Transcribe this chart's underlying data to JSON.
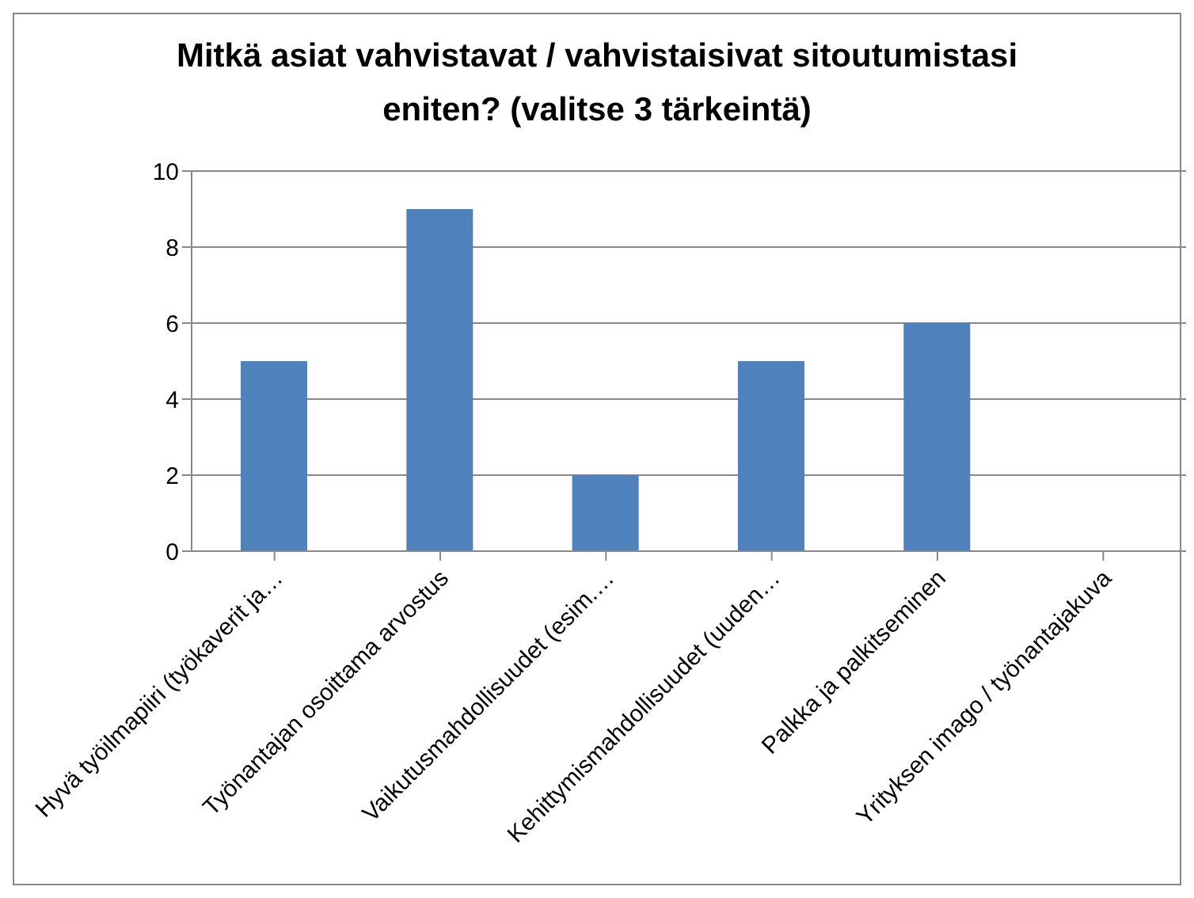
{
  "chart_data": {
    "type": "bar",
    "title": "Mitkä asiat vahvistavat / vahvistaisivat sitoutumistasi eniten? (valitse 3 tärkeintä)",
    "categories": [
      "Hyvä työilmapiiri (työkaverit ja…",
      "Työnantajan osoittama arvostus",
      "Vaikutusmahdollisuudet (esim.…",
      "Kehittymismahdollisuudet (uuden…",
      "Palkka ja palkitseminen",
      "Yrityksen imago / työnantajakuva"
    ],
    "values": [
      5,
      9,
      2,
      5,
      6,
      0
    ],
    "color": "#4f81bd",
    "ylim": [
      0,
      10
    ],
    "yticks": [
      0,
      2,
      4,
      6,
      8,
      10
    ],
    "grid": "y",
    "legend": false
  }
}
